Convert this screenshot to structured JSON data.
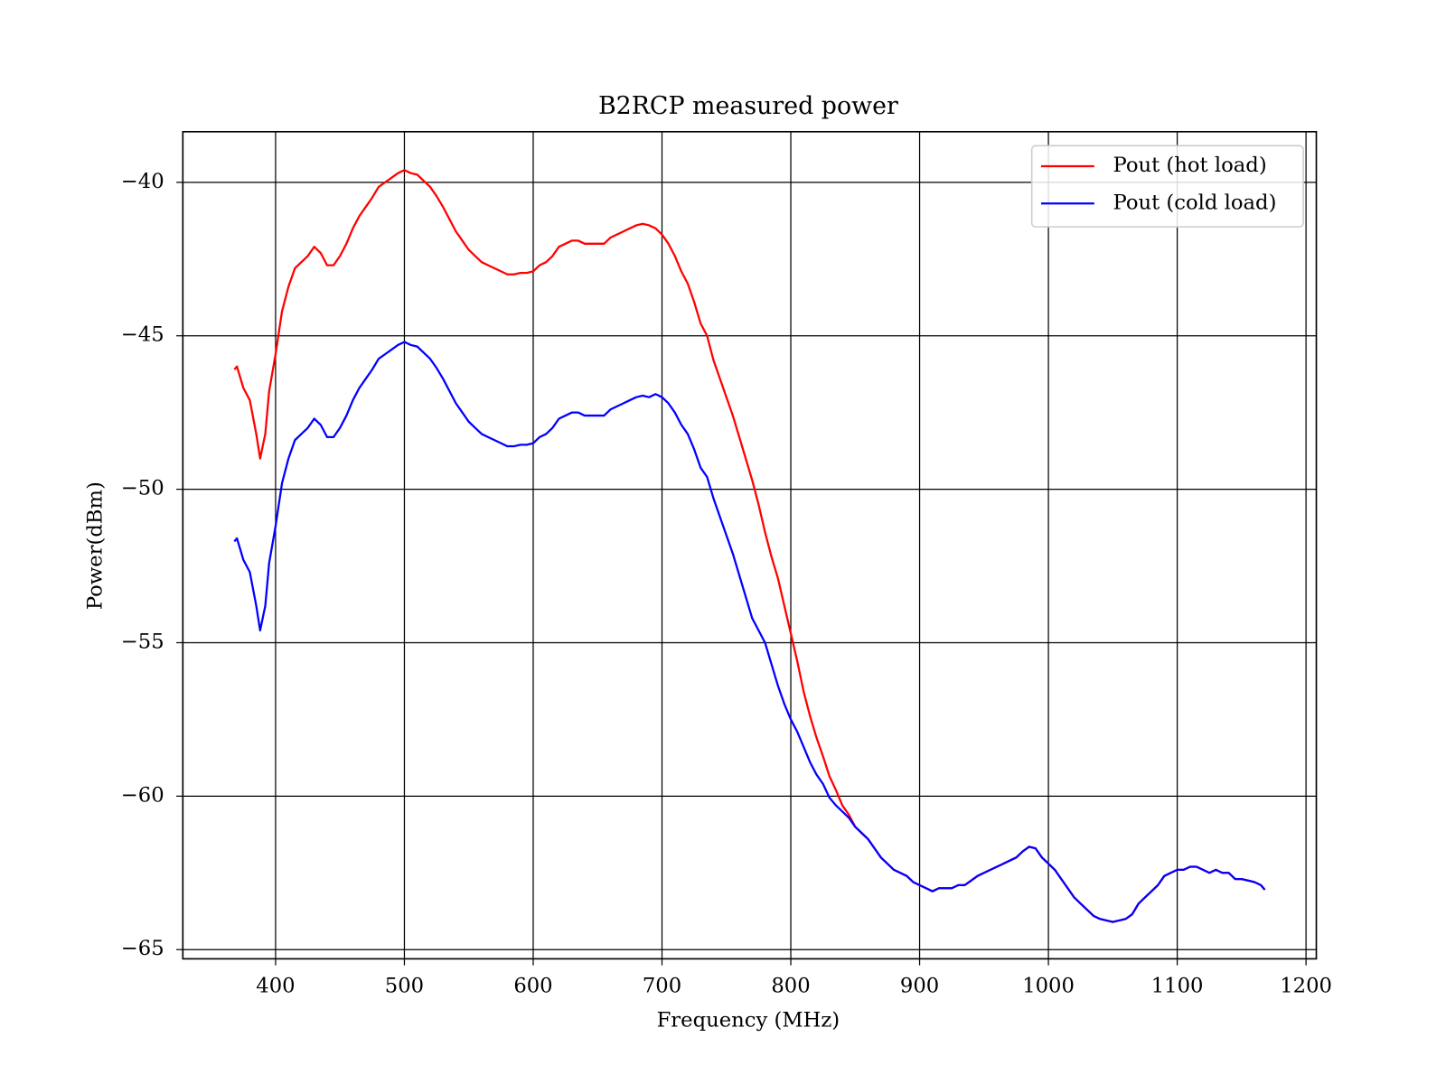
{
  "chart_data": {
    "type": "line",
    "title": "B2RCP measured power",
    "xlabel": "Frequency (MHz)",
    "ylabel": "Power(dBm)",
    "xlim": [
      328,
      1208
    ],
    "ylim": [
      -65.3,
      -38.35
    ],
    "xticks": [
      400,
      500,
      600,
      700,
      800,
      900,
      1000,
      1100,
      1200
    ],
    "yticks": [
      {
        "value": -65,
        "label": "−65"
      },
      {
        "value": -60,
        "label": "−60"
      },
      {
        "value": -55,
        "label": "−55"
      },
      {
        "value": -50,
        "label": "−50"
      },
      {
        "value": -45,
        "label": "−45"
      },
      {
        "value": -40,
        "label": "−40"
      }
    ],
    "grid": true,
    "legend": "upper right",
    "x": [
      368,
      370,
      375,
      380,
      385,
      388,
      392,
      395,
      400,
      405,
      410,
      415,
      420,
      425,
      430,
      435,
      440,
      445,
      450,
      455,
      460,
      465,
      470,
      475,
      480,
      485,
      490,
      495,
      500,
      505,
      510,
      515,
      520,
      525,
      530,
      535,
      540,
      545,
      550,
      555,
      560,
      565,
      570,
      575,
      580,
      585,
      590,
      595,
      600,
      605,
      610,
      615,
      620,
      625,
      630,
      635,
      640,
      645,
      650,
      655,
      660,
      665,
      670,
      675,
      680,
      685,
      690,
      695,
      700,
      705,
      710,
      715,
      720,
      725,
      730,
      735,
      740,
      745,
      750,
      755,
      760,
      765,
      770,
      775,
      780,
      785,
      790,
      795,
      800,
      805,
      810,
      815,
      820,
      825,
      830,
      835,
      840,
      845,
      850,
      855,
      860,
      865,
      870,
      875,
      880,
      885,
      890,
      895,
      900,
      905,
      910,
      915,
      920,
      925,
      930,
      935,
      940,
      945,
      950,
      955,
      960,
      965,
      970,
      975,
      980,
      985,
      990,
      995,
      1000,
      1005,
      1010,
      1015,
      1020,
      1025,
      1030,
      1035,
      1040,
      1045,
      1050,
      1055,
      1060,
      1065,
      1070,
      1075,
      1080,
      1085,
      1090,
      1095,
      1100,
      1105,
      1110,
      1115,
      1120,
      1125,
      1130,
      1135,
      1140,
      1145,
      1150,
      1155,
      1160,
      1165,
      1168
    ],
    "series": [
      {
        "name": "Pout (hot load)",
        "color": "#ff0000",
        "values": [
          -46.1,
          -46.0,
          -46.7,
          -47.1,
          -48.2,
          -49.0,
          -48.2,
          -46.8,
          -45.6,
          -44.2,
          -43.4,
          -42.8,
          -42.6,
          -42.4,
          -42.1,
          -42.3,
          -42.7,
          -42.7,
          -42.4,
          -42.0,
          -41.5,
          -41.1,
          -40.8,
          -40.5,
          -40.15,
          -40.0,
          -39.85,
          -39.7,
          -39.6,
          -39.7,
          -39.75,
          -39.95,
          -40.15,
          -40.45,
          -40.8,
          -41.2,
          -41.6,
          -41.9,
          -42.2,
          -42.4,
          -42.6,
          -42.7,
          -42.8,
          -42.9,
          -43.0,
          -43.0,
          -42.95,
          -42.95,
          -42.9,
          -42.7,
          -42.6,
          -42.4,
          -42.1,
          -42.0,
          -41.9,
          -41.9,
          -42.0,
          -42.0,
          -42.0,
          -42.0,
          -41.8,
          -41.7,
          -41.6,
          -41.5,
          -41.4,
          -41.35,
          -41.4,
          -41.5,
          -41.7,
          -42.0,
          -42.4,
          -42.9,
          -43.3,
          -43.9,
          -44.6,
          -45.0,
          -45.8,
          -46.4,
          -47.0,
          -47.6,
          -48.3,
          -49.0,
          -49.7,
          -50.5,
          -51.4,
          -52.2,
          -52.9,
          -53.8,
          -54.7,
          -55.6,
          -56.6,
          -57.4,
          -58.1,
          -58.7,
          -59.35,
          -59.8,
          -60.3,
          -60.6,
          -61.0,
          -61.2,
          -61.4,
          -61.7,
          -62.0,
          -62.2,
          -62.4,
          -62.5,
          -62.6,
          -62.8,
          -62.9,
          -63.0,
          -63.1,
          -63.0,
          -63.0,
          -63.0,
          -62.9,
          -62.9,
          -62.75,
          -62.6,
          -62.5,
          -62.4,
          -62.3,
          -62.2,
          -62.1,
          -62.0,
          -61.8,
          -61.65,
          -61.7,
          -62.0,
          -62.2,
          -62.4,
          -62.7,
          -63.0,
          -63.3,
          -63.5,
          -63.7,
          -63.9,
          -64.0,
          -64.05,
          -64.1,
          -64.05,
          -64.0,
          -63.85,
          -63.5,
          -63.3,
          -63.1,
          -62.9,
          -62.6,
          -62.5,
          -62.4,
          -62.4,
          -62.3,
          -62.3,
          -62.4,
          -62.5,
          -62.4,
          -62.5,
          -62.5,
          -62.7,
          -62.7,
          -62.75,
          -62.8,
          -62.9,
          -63.05
        ]
      },
      {
        "name": "Pout (cold load)",
        "color": "#0000ff",
        "values": [
          -51.7,
          -51.6,
          -52.3,
          -52.7,
          -53.8,
          -54.6,
          -53.8,
          -52.4,
          -51.2,
          -49.8,
          -49.0,
          -48.4,
          -48.2,
          -48.0,
          -47.7,
          -47.9,
          -48.3,
          -48.3,
          -48.0,
          -47.6,
          -47.1,
          -46.7,
          -46.4,
          -46.1,
          -45.75,
          -45.6,
          -45.45,
          -45.3,
          -45.2,
          -45.3,
          -45.35,
          -45.55,
          -45.75,
          -46.05,
          -46.4,
          -46.8,
          -47.2,
          -47.5,
          -47.8,
          -48.0,
          -48.2,
          -48.3,
          -48.4,
          -48.5,
          -48.6,
          -48.6,
          -48.55,
          -48.55,
          -48.5,
          -48.3,
          -48.2,
          -48.0,
          -47.7,
          -47.6,
          -47.5,
          -47.5,
          -47.6,
          -47.6,
          -47.6,
          -47.6,
          -47.4,
          -47.3,
          -47.2,
          -47.1,
          -47.0,
          -46.95,
          -47.0,
          -46.9,
          -47.0,
          -47.2,
          -47.5,
          -47.9,
          -48.2,
          -48.7,
          -49.3,
          -49.6,
          -50.3,
          -50.9,
          -51.5,
          -52.1,
          -52.8,
          -53.5,
          -54.2,
          -54.6,
          -55.0,
          -55.7,
          -56.4,
          -57.0,
          -57.5,
          -57.9,
          -58.4,
          -58.9,
          -59.3,
          -59.6,
          -60.05,
          -60.3,
          -60.5,
          -60.7,
          -61.0,
          -61.2,
          -61.4,
          -61.7,
          -62.0,
          -62.2,
          -62.4,
          -62.5,
          -62.6,
          -62.8,
          -62.9,
          -63.0,
          -63.1,
          -63.0,
          -63.0,
          -63.0,
          -62.9,
          -62.9,
          -62.75,
          -62.6,
          -62.5,
          -62.4,
          -62.3,
          -62.2,
          -62.1,
          -62.0,
          -61.8,
          -61.65,
          -61.7,
          -62.0,
          -62.2,
          -62.4,
          -62.7,
          -63.0,
          -63.3,
          -63.5,
          -63.7,
          -63.9,
          -64.0,
          -64.05,
          -64.1,
          -64.05,
          -64.0,
          -63.85,
          -63.5,
          -63.3,
          -63.1,
          -62.9,
          -62.6,
          -62.5,
          -62.4,
          -62.4,
          -62.3,
          -62.3,
          -62.4,
          -62.5,
          -62.4,
          -62.5,
          -62.5,
          -62.7,
          -62.7,
          -62.75,
          -62.8,
          -62.9,
          -63.05
        ]
      }
    ]
  }
}
